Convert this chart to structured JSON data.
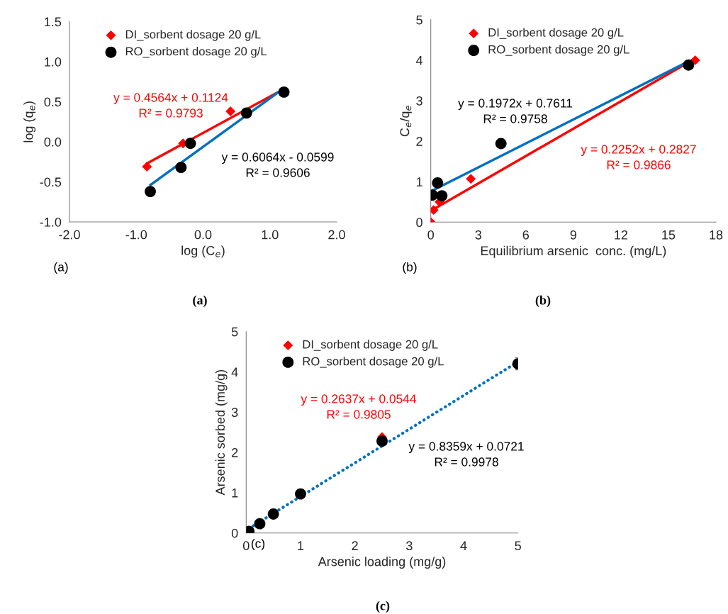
{
  "chart_data": [
    {
      "type": "scatter",
      "xlabel": "log (C$_{e}$)",
      "ylabel": "log (q$_{e}$)",
      "xlim": [
        -2,
        2
      ],
      "xticks": [
        {
          "value": -2,
          "label": "-2.0"
        },
        {
          "value": -1,
          "label": "-1.0"
        },
        {
          "value": 0,
          "label": "0.0"
        },
        {
          "value": 1,
          "label": "1.0"
        },
        {
          "value": 2,
          "label": "2.0"
        }
      ],
      "ylim": [
        -1,
        1.5
      ],
      "yticks": [
        {
          "value": -1,
          "label": "-1.0"
        },
        {
          "value": -0.5,
          "label": "-0.5"
        },
        {
          "value": 0,
          "label": "0.0"
        },
        {
          "value": 0.5,
          "label": "0.5"
        },
        {
          "value": 1,
          "label": "1.0"
        },
        {
          "value": 1.5,
          "label": "1.5"
        }
      ],
      "legend": "top left",
      "grid": false,
      "series": [
        {
          "name": "DI_sorbent dosage 20 g/L",
          "type": "scatter",
          "marker": "diamond",
          "color": "#ff0000",
          "x": [
            -0.84,
            -0.3,
            0.41
          ],
          "values": [
            -0.31,
            -0.02,
            0.38
          ]
        },
        {
          "name": "RO_sorbent dosage 20 g/L",
          "type": "scatter",
          "marker": "circle",
          "color": "#000000",
          "x": [
            -0.79,
            -0.33,
            -0.19,
            0.65,
            1.21
          ],
          "values": [
            -0.62,
            -0.32,
            -0.02,
            0.36,
            0.62
          ]
        },
        {
          "type": "line",
          "marker": "none",
          "line_style": "solid",
          "color": "#ff0000",
          "x": [
            -0.84,
            1.21
          ],
          "values": [
            -0.27,
            0.66
          ]
        },
        {
          "type": "line",
          "marker": "none",
          "line_style": "solid",
          "color": "#0070c0",
          "x": [
            -0.79,
            1.21
          ],
          "values": [
            -0.54,
            0.67
          ]
        }
      ],
      "annotations": [
        "y = 0.4564x + 0.1124",
        "R² = 0.9793",
        "y = 0.6064x - 0.0599",
        "R² = 0.9606",
        "(a)",
        "(a)"
      ]
    },
    {
      "type": "scatter",
      "xlabel": "Equilibrium arsenic  conc. (mg/L)",
      "ylabel": "C$_{e}$/q$_{e}$",
      "xlim": [
        0,
        18
      ],
      "xticks": [
        0,
        3,
        6,
        9,
        12,
        15,
        18
      ],
      "ylim": [
        0,
        5
      ],
      "yticks": [
        0,
        1,
        2,
        3,
        4,
        5
      ],
      "legend": "top left",
      "grid": false,
      "series": [
        {
          "name": "DI_sorbent dosage 20 g/L",
          "type": "scatter",
          "marker": "diamond",
          "color": "#ff0000",
          "x": [
            0.0,
            0.18,
            0.55,
            2.53,
            16.69
          ],
          "values": [
            0.0,
            0.3,
            0.5,
            1.07,
            4.0
          ]
        },
        {
          "name": "RO_sorbent dosage 20 g/L",
          "type": "scatter",
          "marker": "circle",
          "color": "#000000",
          "x": [
            0.1,
            0.43,
            0.7,
            4.43,
            16.27
          ],
          "values": [
            0.67,
            0.97,
            0.65,
            1.94,
            3.88
          ]
        },
        {
          "type": "line",
          "marker": "none",
          "line_style": "solid",
          "color": "#ff0000",
          "x": [
            0.0,
            16.69
          ],
          "values": [
            0.28,
            4.04
          ]
        },
        {
          "type": "line",
          "marker": "none",
          "line_style": "solid",
          "color": "#0070c0",
          "x": [
            0.1,
            16.27
          ],
          "values": [
            0.78,
            3.97
          ]
        }
      ],
      "annotations": [
        "y = 0.1972x + 0.7611",
        "R² = 0.9758",
        "y = 0.2252x + 0.2827",
        "R² = 0.9866",
        "(b)",
        "(b)"
      ]
    },
    {
      "type": "scatter",
      "xlabel": "Arsenic loading (mg/g)",
      "ylabel": "Arsenic sorbed (mg/g)",
      "xlim": [
        0,
        5
      ],
      "xticks": [
        0,
        1,
        2,
        3,
        4,
        5
      ],
      "ylim": [
        0,
        5
      ],
      "yticks": [
        0,
        1,
        2,
        3,
        4,
        5
      ],
      "legend": "top left",
      "grid": false,
      "series": [
        {
          "name": "DI_sorbent dosage 20 g/L",
          "marker": "diamond",
          "color": "#ff0000",
          "x": [
            2.5
          ],
          "values": [
            2.38
          ]
        },
        {
          "name": "RO_sorbent dosage 20 g/L",
          "type": "scatter",
          "marker": "circle",
          "color": "#000000",
          "x": [
            0.05,
            0.25,
            0.5,
            1,
            2.5,
            5
          ],
          "values": [
            0.04,
            0.23,
            0.47,
            0.97,
            2.28,
            4.2
          ],
          "errors": [
            null,
            null,
            null,
            null,
            null,
            0.15
          ]
        },
        {
          "type": "line",
          "marker": "none",
          "line_style": "dotted",
          "color": "#0070c0",
          "x": [
            0.05,
            5
          ],
          "values": [
            0.11,
            4.25
          ]
        }
      ],
      "annotations": [
        "y = 0.2637x + 0.0544",
        "R² = 0.9805",
        "y = 0.8359x + 0.0721",
        "R² = 0.9978",
        "(c)",
        "(c)"
      ]
    }
  ]
}
